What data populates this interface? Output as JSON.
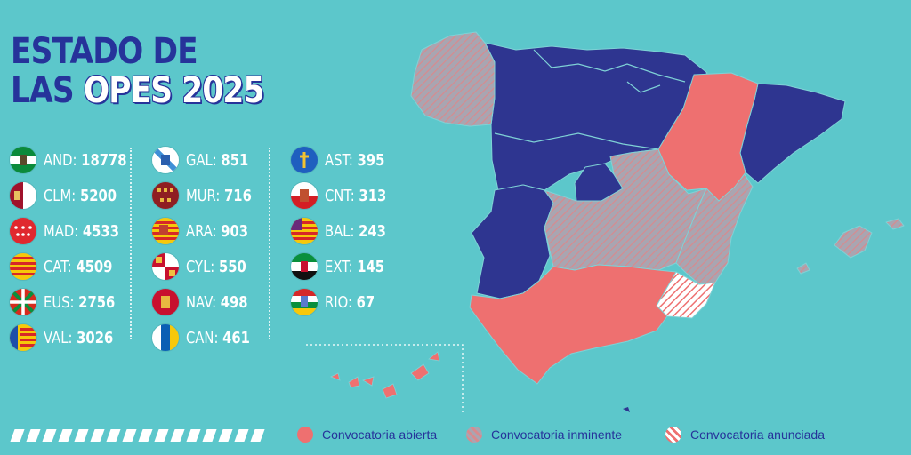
{
  "title": {
    "line1": "ESTADO DE",
    "line2_plain": "LAS",
    "line2_highlight": "OPES 2025"
  },
  "colors": {
    "background": "#5cc7cb",
    "title_blue": "#26339a",
    "abierta": "#ee7070",
    "inminente_base": "#a9a5b1",
    "inminente_stripe": "#d88a8e",
    "anunciada_stripe": "#ee7070",
    "region_blue": "#2e3590"
  },
  "regions": [
    {
      "code": "AND",
      "value": "18778",
      "flag_icon": "andalucia-flag-icon"
    },
    {
      "code": "CLM",
      "value": "5200",
      "flag_icon": "castilla-la-mancha-flag-icon"
    },
    {
      "code": "MAD",
      "value": "4533",
      "flag_icon": "madrid-flag-icon"
    },
    {
      "code": "CAT",
      "value": "4509",
      "flag_icon": "catalunya-flag-icon"
    },
    {
      "code": "EUS",
      "value": "2756",
      "flag_icon": "euskadi-flag-icon"
    },
    {
      "code": "VAL",
      "value": "3026",
      "flag_icon": "valencia-flag-icon"
    },
    {
      "code": "GAL",
      "value": "851",
      "flag_icon": "galicia-flag-icon"
    },
    {
      "code": "MUR",
      "value": "716",
      "flag_icon": "murcia-flag-icon"
    },
    {
      "code": "ARA",
      "value": "903",
      "flag_icon": "aragon-flag-icon"
    },
    {
      "code": "CYL",
      "value": "550",
      "flag_icon": "castilla-y-leon-flag-icon"
    },
    {
      "code": "NAV",
      "value": "498",
      "flag_icon": "navarra-flag-icon"
    },
    {
      "code": "CAN",
      "value": "461",
      "flag_icon": "canarias-flag-icon"
    },
    {
      "code": "AST",
      "value": "395",
      "flag_icon": "asturias-flag-icon"
    },
    {
      "code": "CNT",
      "value": "313",
      "flag_icon": "cantabria-flag-icon"
    },
    {
      "code": "BAL",
      "value": "243",
      "flag_icon": "baleares-flag-icon"
    },
    {
      "code": "EXT",
      "value": "145",
      "flag_icon": "extremadura-flag-icon"
    },
    {
      "code": "RIO",
      "value": "67",
      "flag_icon": "la-rioja-flag-icon"
    }
  ],
  "legend": [
    {
      "label": "Convocatoria abierta",
      "style": "solid"
    },
    {
      "label": "Convocatoria inminente",
      "style": "striped-grey"
    },
    {
      "label": "Convocatoria anunciada",
      "style": "striped-white"
    }
  ]
}
